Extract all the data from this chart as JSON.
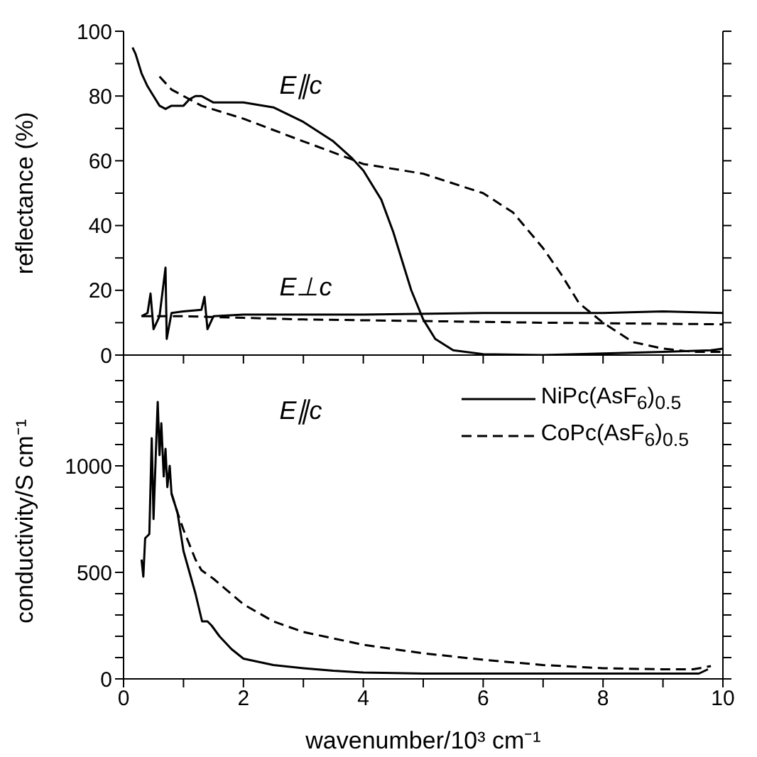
{
  "chart_data": [
    {
      "type": "line",
      "ylabel": "reflectance (%)",
      "xlim": [
        0,
        10
      ],
      "ylim": [
        0,
        100
      ],
      "tick_labels": "y",
      "xticks": [
        0,
        {
          "value": 1,
          "label": null
        },
        2,
        {
          "value": 3,
          "label": null
        },
        4,
        {
          "value": 5,
          "label": null
        },
        6,
        {
          "value": 7,
          "label": null
        },
        8,
        {
          "value": 9,
          "label": null
        },
        10
      ],
      "yticks": [
        0,
        {
          "value": 10,
          "label": null
        },
        20,
        {
          "value": 30,
          "label": null
        },
        40,
        {
          "value": 50,
          "label": null
        },
        60,
        {
          "value": 70,
          "label": null
        },
        80,
        {
          "value": 90,
          "label": null
        },
        100
      ],
      "annotations": [
        "E∥c",
        "E⊥c"
      ],
      "series": [
        {
          "color": "#000000",
          "line_style": "solid",
          "x": [
            0.15,
            0.2,
            0.3,
            0.4,
            0.5,
            0.6,
            0.7,
            0.8,
            0.9,
            1.0,
            1.1,
            1.2,
            1.3,
            1.5,
            1.8,
            2.0,
            2.5,
            3.0,
            3.5,
            3.8,
            4.0,
            4.3,
            4.5,
            4.7,
            4.8,
            5.0,
            5.2,
            5.5,
            6.0,
            7.0,
            8.0,
            9.0,
            9.8,
            10.0
          ],
          "values": [
            95,
            93,
            87,
            83,
            80,
            77,
            76,
            77,
            77,
            77,
            79,
            80,
            80,
            78,
            78,
            78,
            76.5,
            72,
            66,
            61,
            57,
            48,
            38,
            26,
            20,
            11,
            5,
            1.5,
            0.3,
            0,
            0.5,
            1,
            1.5,
            2
          ]
        },
        {
          "color": "#000000",
          "line_style": "dashed",
          "x": [
            0.6,
            0.8,
            1.0,
            1.3,
            2.0,
            3.0,
            3.8,
            4.0,
            5.0,
            6.0,
            6.5,
            7.0,
            7.3,
            7.6,
            7.8,
            8.0,
            8.5,
            9.0,
            9.5,
            10.0
          ],
          "values": [
            86,
            82,
            80,
            77,
            73,
            66,
            60.5,
            59,
            56,
            50,
            44,
            33,
            25,
            16,
            13,
            10,
            4,
            2,
            1,
            1
          ]
        },
        {
          "color": "#000000",
          "line_style": "solid",
          "x": [
            0.3,
            0.4,
            0.45,
            0.5,
            0.6,
            0.7,
            0.72,
            0.8,
            1.0,
            1.3,
            1.35,
            1.4,
            1.5,
            2.0,
            3.0,
            4.0,
            6.0,
            8.0,
            9.0,
            10.0
          ],
          "values": [
            12,
            13,
            19,
            8,
            12,
            27,
            5,
            13,
            13.5,
            14,
            18,
            8,
            12,
            12.5,
            12.5,
            12.5,
            13,
            13,
            13.5,
            13
          ]
        },
        {
          "color": "#000000",
          "line_style": "dashed",
          "x": [
            0.3,
            1.0,
            2.0,
            3.0,
            5.0,
            7.0,
            10.0
          ],
          "values": [
            12,
            12,
            11.5,
            11,
            10.5,
            10,
            9.5
          ]
        }
      ]
    },
    {
      "type": "line",
      "xlabel": "wavenumber/10³ cm⁻¹",
      "ylabel": "conductivity/S cm⁻¹",
      "xlim": [
        0,
        10
      ],
      "ylim": [
        0,
        1480
      ],
      "legend": "top right",
      "xticks": [
        0,
        {
          "value": 1,
          "label": null
        },
        2,
        {
          "value": 3,
          "label": null
        },
        4,
        {
          "value": 5,
          "label": null
        },
        6,
        {
          "value": 7,
          "label": null
        },
        8,
        {
          "value": 9,
          "label": null
        },
        10
      ],
      "yticks": [
        0,
        {
          "value": 100,
          "label": null
        },
        {
          "value": 200,
          "label": null
        },
        {
          "value": 300,
          "label": null
        },
        {
          "value": 400,
          "label": null
        },
        500,
        {
          "value": 600,
          "label": null
        },
        {
          "value": 700,
          "label": null
        },
        {
          "value": 800,
          "label": null
        },
        {
          "value": 900,
          "label": null
        },
        1000,
        {
          "value": 1100,
          "label": null
        },
        {
          "value": 1200,
          "label": null
        },
        {
          "value": 1300,
          "label": null
        },
        {
          "value": 1400,
          "label": null
        }
      ],
      "annotations": [
        "E∥c"
      ],
      "series": [
        {
          "name": "NiPc(AsF$_{6}$)$_{0.5}$",
          "color": "#000000",
          "line_style": "solid",
          "x": [
            0.3,
            0.33,
            0.36,
            0.43,
            0.47,
            0.5,
            0.55,
            0.57,
            0.6,
            0.63,
            0.67,
            0.7,
            0.73,
            0.77,
            0.8,
            0.9,
            1.0,
            1.1,
            1.2,
            1.31,
            1.4,
            1.47,
            1.6,
            1.8,
            2.0,
            2.5,
            3.0,
            3.5,
            4.0,
            5.0,
            6.0,
            7.0,
            8.0,
            9.0,
            9.6,
            9.75
          ],
          "values": [
            560,
            480,
            660,
            680,
            1130,
            750,
            1150,
            1300,
            1050,
            1200,
            950,
            1080,
            900,
            1000,
            870,
            780,
            600,
            500,
            400,
            270,
            270,
            250,
            200,
            140,
            95,
            65,
            50,
            38,
            30,
            25,
            25,
            25,
            25,
            25,
            25,
            45
          ]
        },
        {
          "name": "CoPc(AsF$_{6}$)$_{0.5}$",
          "color": "#000000",
          "line_style": "dashed",
          "x": [
            0.8,
            0.9,
            1.0,
            1.2,
            1.3,
            1.5,
            2.0,
            2.5,
            3.0,
            4.0,
            5.0,
            6.0,
            7.0,
            8.0,
            9.0,
            9.5,
            9.8
          ],
          "values": [
            870,
            780,
            700,
            560,
            510,
            470,
            350,
            270,
            220,
            160,
            120,
            90,
            65,
            50,
            45,
            45,
            60
          ]
        }
      ]
    }
  ]
}
